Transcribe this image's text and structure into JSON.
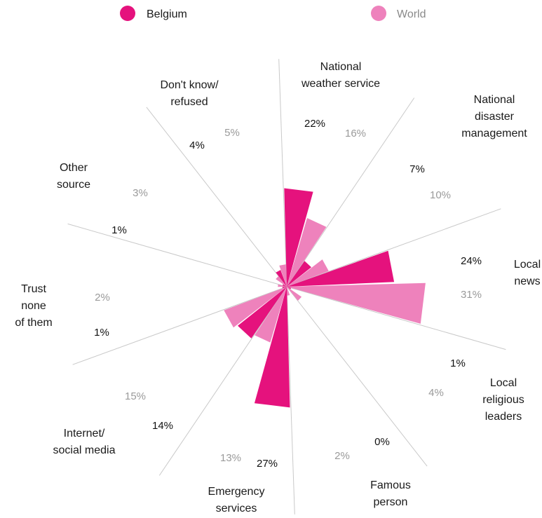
{
  "chart_data": {
    "type": "polar-bar",
    "legend": {
      "placement": "top",
      "items": [
        {
          "name": "Belgium",
          "color": "#e5127d"
        },
        {
          "name": "World",
          "color": "#ee82bc"
        }
      ]
    },
    "categories": [
      {
        "label_lines": [
          "National",
          "weather service"
        ],
        "belgium": 22,
        "world": 16,
        "belgium_text": "22%",
        "world_text": "16%"
      },
      {
        "label_lines": [
          "National",
          "disaster",
          "management"
        ],
        "belgium": 7,
        "world": 10,
        "belgium_text": "7%",
        "world_text": "10%"
      },
      {
        "label_lines": [
          "Local",
          "news"
        ],
        "belgium": 24,
        "world": 31,
        "belgium_text": "24%",
        "world_text": "31%"
      },
      {
        "label_lines": [
          "Local",
          "religious",
          "leaders"
        ],
        "belgium": 1,
        "world": 4,
        "belgium_text": "1%",
        "world_text": "4%"
      },
      {
        "label_lines": [
          "Famous",
          "person"
        ],
        "belgium": 0,
        "world": 2,
        "belgium_text": "0%",
        "world_text": "2%"
      },
      {
        "label_lines": [
          "Emergency",
          "services"
        ],
        "belgium": 27,
        "world": 13,
        "belgium_text": "27%",
        "world_text": "13%"
      },
      {
        "label_lines": [
          "Internet/",
          "social media"
        ],
        "belgium": 14,
        "world": 15,
        "belgium_text": "14%",
        "world_text": "15%"
      },
      {
        "label_lines": [
          "Trust",
          "none",
          "of them"
        ],
        "belgium": 1,
        "world": 2,
        "belgium_text": "1%",
        "world_text": "2%"
      },
      {
        "label_lines": [
          "Other",
          "source"
        ],
        "belgium": 1,
        "world": 3,
        "belgium_text": "1%",
        "world_text": "3%"
      },
      {
        "label_lines": [
          "Don't know/",
          "refused"
        ],
        "belgium": 4,
        "world": 5,
        "belgium_text": "4%",
        "world_text": "5%"
      }
    ],
    "max_value": 31
  }
}
